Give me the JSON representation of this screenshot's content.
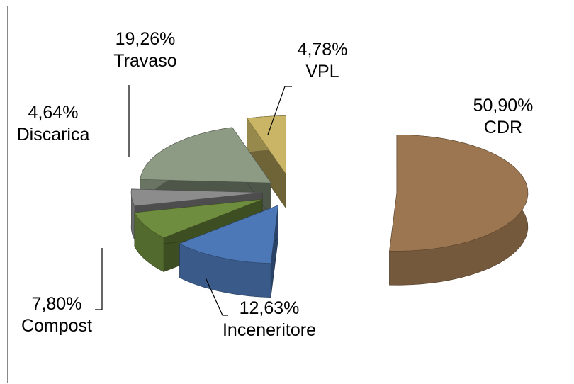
{
  "chart_data": {
    "type": "pie",
    "categories": [
      "CDR",
      "Inceneritore",
      "Compost",
      "Discarica",
      "Travaso",
      "VPL"
    ],
    "values": [
      50.9,
      12.63,
      7.8,
      4.64,
      19.26,
      4.78
    ],
    "value_labels": [
      "50,90%",
      "12,63%",
      "7,80%",
      "4,64%",
      "19,26%",
      "4,78%"
    ],
    "colors": [
      "#9c7650",
      "#4d78b8",
      "#6f8d3e",
      "#8c8c8c",
      "#8d9a84",
      "#c9b565"
    ]
  }
}
